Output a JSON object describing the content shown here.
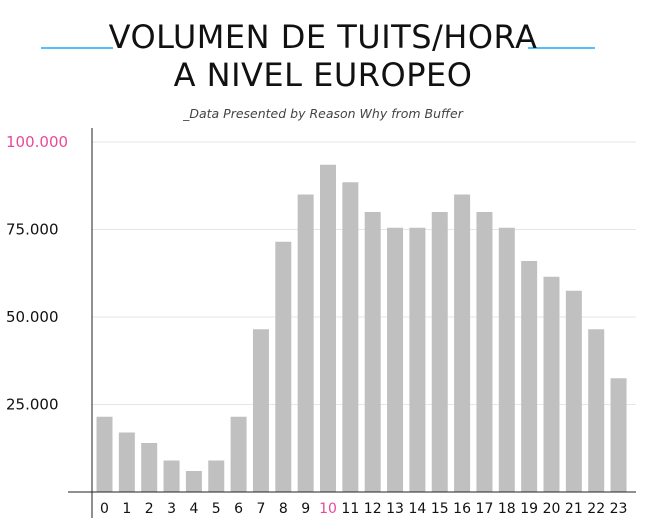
{
  "header": {
    "title_line1": "VOLUMEN DE TUITS/HORA",
    "title_line2": "A NIVEL EUROPEO",
    "subtitle": "_Data Presented by Reason Why from Buffer",
    "accent_color": "#4fc3f7"
  },
  "chart_data": {
    "type": "bar",
    "title": "VOLUMEN DE TUITS/HORA A NIVEL EUROPEO",
    "xlabel": "",
    "ylabel": "",
    "categories": [
      "0",
      "1",
      "2",
      "3",
      "4",
      "5",
      "6",
      "7",
      "8",
      "9",
      "10",
      "11",
      "12",
      "13",
      "14",
      "15",
      "16",
      "17",
      "18",
      "19",
      "20",
      "21",
      "22",
      "23"
    ],
    "values": [
      21500,
      17000,
      14000,
      9000,
      6000,
      9000,
      21500,
      46500,
      71500,
      85000,
      93500,
      88500,
      80000,
      75500,
      75500,
      80000,
      85000,
      80000,
      75500,
      66000,
      61500,
      57500,
      46500,
      32500
    ],
    "ylim": [
      0,
      100000
    ],
    "yticks": [
      {
        "value": 25000,
        "label": "25.000"
      },
      {
        "value": 50000,
        "label": "50.000"
      },
      {
        "value": 75000,
        "label": "75.000"
      },
      {
        "value": 100000,
        "label": "100.000"
      }
    ],
    "highlight_category": "10",
    "bar_color": "#c0c0c0",
    "highlight_color": "#e84a9b",
    "gridlines": true
  }
}
